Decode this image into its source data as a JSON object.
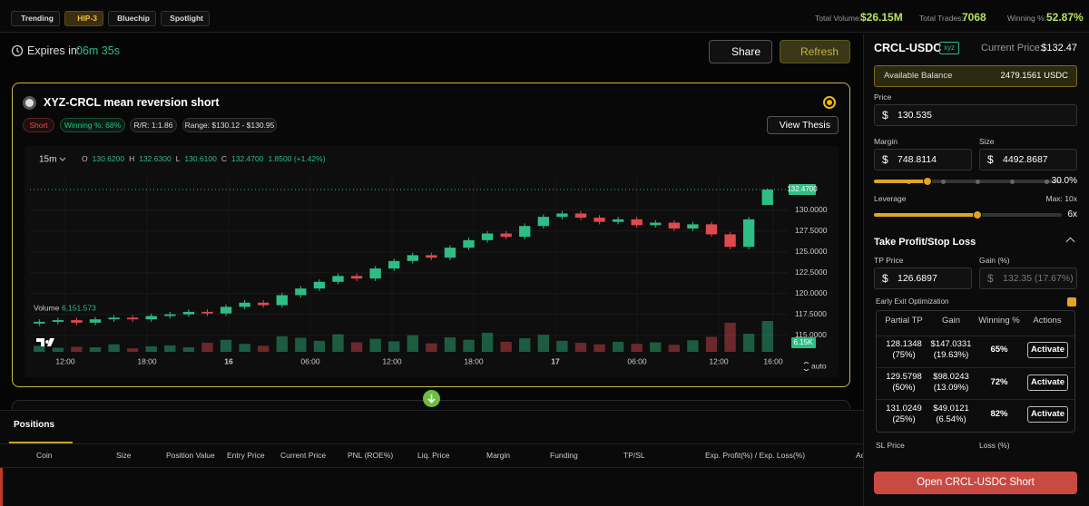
{
  "top_bar": {
    "tabs": [
      "Trending",
      "HIP-3",
      "Bluechip",
      "Spotlight"
    ],
    "stats": [
      {
        "label": "Total Volume:",
        "value": "$26.15M"
      },
      {
        "label": "Total Trades:",
        "value": "7068"
      },
      {
        "label": "Winning %:",
        "value": "52.87%"
      }
    ]
  },
  "header": {
    "expires_label": "Expires in:",
    "expires_value": "06m 35s",
    "share": "Share",
    "refresh": "Refresh"
  },
  "strategy_card": {
    "title": "XYZ-CRCL mean reversion short",
    "tags": [
      "Short",
      "Winning %: 68%",
      "R/R: 1:1.86",
      "Range: $130.12 - $130.95"
    ],
    "view_thesis": "View Thesis"
  },
  "chart_data": {
    "type": "candlestick",
    "interval": "15m",
    "legend": [
      "O",
      "130.6200",
      "H",
      "132.6300",
      "L",
      "130.6100",
      "C",
      "132.4700",
      "1.8500 (+1.42%)"
    ],
    "volume_label": "Volume",
    "volume_value": "6,151.573",
    "up_color": "#2ebd85",
    "down_color": "#e0494f",
    "grid": true,
    "open": [
      116.4,
      116.6,
      116.8,
      116.5,
      116.9,
      117.1,
      116.9,
      117.3,
      117.5,
      117.8,
      117.6,
      118.4,
      118.9,
      118.6,
      119.8,
      120.6,
      121.4,
      122.1,
      121.8,
      123.0,
      123.9,
      124.6,
      124.3,
      125.5,
      126.4,
      127.2,
      126.8,
      128.1,
      129.2,
      129.6,
      129.1,
      128.6,
      128.9,
      128.2,
      128.5,
      127.8,
      128.3,
      127.1,
      125.6,
      130.62
    ],
    "high": [
      116.9,
      117.1,
      117.1,
      117.2,
      117.4,
      117.4,
      117.6,
      117.8,
      118.1,
      118.1,
      118.7,
      119.2,
      119.2,
      120.1,
      120.9,
      121.7,
      122.4,
      122.4,
      123.3,
      124.2,
      124.9,
      124.9,
      125.8,
      126.7,
      127.5,
      127.5,
      128.4,
      129.5,
      129.9,
      129.9,
      129.4,
      129.2,
      129.2,
      128.8,
      128.8,
      128.6,
      128.6,
      127.4,
      129.2,
      132.63
    ],
    "low": [
      116.1,
      116.3,
      116.2,
      116.2,
      116.6,
      116.6,
      116.6,
      117.0,
      117.2,
      117.3,
      117.3,
      118.1,
      118.3,
      118.3,
      119.5,
      120.3,
      121.1,
      121.5,
      121.5,
      122.7,
      123.6,
      124.0,
      124.0,
      125.2,
      126.1,
      126.5,
      126.5,
      127.8,
      128.9,
      128.8,
      128.3,
      128.3,
      127.9,
      127.9,
      127.5,
      127.5,
      126.8,
      125.3,
      125.3,
      130.61
    ],
    "close": [
      116.6,
      116.8,
      116.5,
      116.9,
      117.1,
      116.9,
      117.3,
      117.5,
      117.8,
      117.6,
      118.4,
      118.9,
      118.6,
      119.8,
      120.6,
      121.4,
      122.1,
      121.8,
      123.0,
      123.9,
      124.6,
      124.3,
      125.5,
      126.4,
      127.2,
      126.8,
      128.1,
      129.2,
      129.6,
      129.1,
      128.6,
      128.9,
      128.2,
      128.5,
      127.8,
      128.3,
      127.1,
      125.6,
      128.9,
      132.47
    ],
    "volume": [
      1.2,
      0.8,
      1.0,
      0.9,
      1.5,
      0.7,
      1.1,
      1.3,
      0.9,
      1.8,
      2.4,
      1.6,
      1.2,
      3.1,
      2.8,
      2.2,
      3.5,
      1.9,
      2.6,
      2.1,
      3.3,
      1.7,
      2.9,
      2.4,
      3.8,
      2.0,
      2.7,
      3.4,
      2.2,
      1.8,
      1.5,
      2.0,
      1.6,
      1.9,
      1.4,
      2.3,
      3.0,
      5.8,
      3.6,
      6.15
    ],
    "last_price_label": "132.4700",
    "last_volume_label": "6.15K",
    "ylim": [
      113,
      134
    ],
    "yticks": [
      {
        "value": 115,
        "label": "115.0000"
      },
      {
        "value": 117.5,
        "label": "117.5000"
      },
      {
        "value": 120,
        "label": "120.0000"
      },
      {
        "value": 122.5,
        "label": "122.5000"
      },
      {
        "value": 125,
        "label": "125.0000"
      },
      {
        "value": 127.5,
        "label": "127.5000"
      },
      {
        "value": 130,
        "label": "130.0000"
      }
    ],
    "xticks": [
      "12:00",
      "18:00",
      "16",
      "06:00",
      "12:00",
      "18:00",
      "17",
      "06:00",
      "12:00",
      "16:00"
    ],
    "auto": "auto"
  },
  "positions": {
    "tab": "Positions",
    "columns": [
      "Coin",
      "Size",
      "Position Value",
      "Entry Price",
      "Current Price",
      "PNL (ROE%)",
      "Liq. Price",
      "Margin",
      "Funding",
      "TP/SL",
      "Exp. Profit(%) / Exp. Loss(%)",
      "Actions"
    ]
  },
  "order_panel": {
    "pair": "CRCL-USDC",
    "badge": "xyz",
    "current_price_label": "Current Price:",
    "current_price": "$132.47",
    "balance_label": "Available Balance",
    "balance": "2479.1561 USDC",
    "currency": "$",
    "price_label": "Price",
    "price": "130.535",
    "margin_label": "Margin",
    "margin": "748.8114",
    "size_label": "Size",
    "size": "4492.8687",
    "size_pct": "30.0%",
    "leverage_label": "Leverage",
    "leverage_max": "Max: 10x",
    "leverage": "6x",
    "tpsl_title": "Take Profit/Stop Loss",
    "tp_label": "TP Price",
    "tp": "126.6897",
    "gain_label": "Gain (%)",
    "gain": "132.35 (17.67%)",
    "early_exit": "Early Exit Optimization",
    "table": {
      "headers": [
        "Partial TP",
        "Gain",
        "Winning %",
        "Actions"
      ],
      "rows": [
        [
          "128.1348",
          "(75%)",
          "$147.0331",
          "(19.63%)",
          "65%",
          "Activate"
        ],
        [
          "129.5798",
          "(50%)",
          "$98.0243",
          "(13.09%)",
          "72%",
          "Activate"
        ],
        [
          "131.0249",
          "(25%)",
          "$49.0121",
          "(6.54%)",
          "82%",
          "Activate"
        ]
      ]
    },
    "sl_label": "SL Price",
    "loss_label": "Loss (%)",
    "submit": "Open CRCL-USDC Short"
  }
}
